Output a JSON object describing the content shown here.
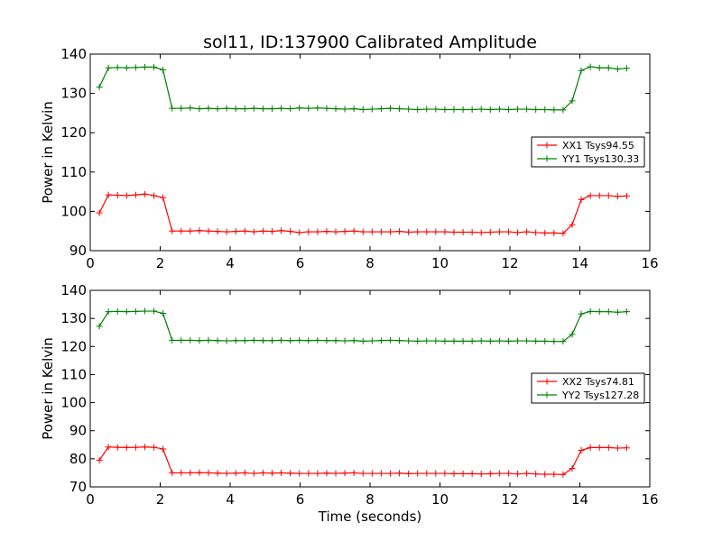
{
  "chart_data": [
    {
      "type": "line",
      "title": "sol11, ID:137900 Calibrated Amplitude",
      "xlabel": "",
      "ylabel": "Power in Kelvin",
      "xlim": [
        0,
        16
      ],
      "ylim": [
        90,
        140
      ],
      "xticks": [
        "0",
        "2",
        "4",
        "6",
        "8",
        "10",
        "12",
        "14",
        "16"
      ],
      "yticks": [
        "90",
        "100",
        "110",
        "120",
        "130",
        "140"
      ],
      "legend_position": "right",
      "x": [
        0.26,
        0.52,
        0.78,
        1.04,
        1.3,
        1.56,
        1.82,
        2.08,
        2.34,
        2.6,
        2.86,
        3.12,
        3.38,
        3.64,
        3.9,
        4.16,
        4.42,
        4.68,
        4.94,
        5.2,
        5.46,
        5.72,
        5.98,
        6.24,
        6.5,
        6.76,
        7.02,
        7.28,
        7.54,
        7.8,
        8.06,
        8.32,
        8.58,
        8.84,
        9.1,
        9.36,
        9.62,
        9.88,
        10.14,
        10.4,
        10.66,
        10.92,
        11.18,
        11.44,
        11.7,
        11.96,
        12.22,
        12.48,
        12.74,
        13.0,
        13.26,
        13.52,
        13.78,
        14.04,
        14.3,
        14.56,
        14.82,
        15.08,
        15.34
      ],
      "series": [
        {
          "name": "XX1 Tsys94.55",
          "color": "#ff0000",
          "values": [
            99.6,
            104.2,
            104.1,
            104.0,
            104.2,
            104.4,
            104.0,
            103.5,
            95.0,
            95.0,
            95.0,
            95.1,
            95.0,
            94.9,
            94.8,
            94.9,
            95.0,
            94.8,
            95.0,
            94.9,
            95.1,
            94.9,
            94.6,
            94.8,
            94.8,
            94.9,
            94.8,
            94.9,
            95.0,
            94.8,
            94.8,
            94.8,
            94.8,
            94.9,
            94.7,
            94.8,
            94.8,
            94.8,
            94.8,
            94.7,
            94.7,
            94.7,
            94.6,
            94.7,
            94.8,
            94.8,
            94.6,
            94.8,
            94.6,
            94.5,
            94.5,
            94.4,
            96.6,
            103.0,
            104.0,
            104.0,
            104.0,
            103.8,
            103.9
          ]
        },
        {
          "name": "YY1 Tsys130.33",
          "color": "#008000",
          "values": [
            131.6,
            136.5,
            136.6,
            136.5,
            136.6,
            136.7,
            136.7,
            136.0,
            126.2,
            126.2,
            126.3,
            126.1,
            126.2,
            126.1,
            126.2,
            126.1,
            126.1,
            126.2,
            126.1,
            126.1,
            126.2,
            126.1,
            126.3,
            126.2,
            126.3,
            126.2,
            126.1,
            126.0,
            126.1,
            125.9,
            126.0,
            126.1,
            126.2,
            126.1,
            126.0,
            125.9,
            126.0,
            126.0,
            125.9,
            125.9,
            125.9,
            125.9,
            126.0,
            125.9,
            126.0,
            125.9,
            126.0,
            126.0,
            125.9,
            125.9,
            125.8,
            125.8,
            128.1,
            135.8,
            136.8,
            136.5,
            136.5,
            136.2,
            136.4
          ]
        }
      ]
    },
    {
      "type": "line",
      "title": "",
      "xlabel": "Time (seconds)",
      "ylabel": "Power in Kelvin",
      "xlim": [
        0,
        16
      ],
      "ylim": [
        70,
        140
      ],
      "xticks": [
        "0",
        "2",
        "4",
        "6",
        "8",
        "10",
        "12",
        "14",
        "16"
      ],
      "yticks": [
        "70",
        "80",
        "90",
        "100",
        "110",
        "120",
        "130",
        "140"
      ],
      "legend_position": "right",
      "x": [
        0.26,
        0.52,
        0.78,
        1.04,
        1.3,
        1.56,
        1.82,
        2.08,
        2.34,
        2.6,
        2.86,
        3.12,
        3.38,
        3.64,
        3.9,
        4.16,
        4.42,
        4.68,
        4.94,
        5.2,
        5.46,
        5.72,
        5.98,
        6.24,
        6.5,
        6.76,
        7.02,
        7.28,
        7.54,
        7.8,
        8.06,
        8.32,
        8.58,
        8.84,
        9.1,
        9.36,
        9.62,
        9.88,
        10.14,
        10.4,
        10.66,
        10.92,
        11.18,
        11.44,
        11.7,
        11.96,
        12.22,
        12.48,
        12.74,
        13.0,
        13.26,
        13.52,
        13.78,
        14.04,
        14.3,
        14.56,
        14.82,
        15.08,
        15.34
      ],
      "series": [
        {
          "name": "XX2 Tsys74.81",
          "color": "#ff0000",
          "values": [
            79.5,
            84.2,
            84.1,
            84.0,
            84.1,
            84.2,
            84.1,
            83.5,
            75.0,
            75.0,
            75.0,
            75.1,
            75.0,
            74.9,
            74.8,
            74.9,
            75.0,
            74.8,
            75.0,
            74.9,
            75.0,
            74.9,
            74.8,
            74.8,
            74.8,
            74.9,
            74.8,
            74.9,
            75.0,
            74.8,
            74.8,
            74.8,
            74.8,
            74.9,
            74.7,
            74.8,
            74.8,
            74.8,
            74.8,
            74.7,
            74.7,
            74.7,
            74.6,
            74.7,
            74.8,
            74.8,
            74.6,
            74.8,
            74.6,
            74.5,
            74.5,
            74.4,
            76.6,
            83.0,
            84.0,
            84.0,
            84.0,
            83.8,
            83.9
          ]
        },
        {
          "name": "YY2 Tsys127.28",
          "color": "#008000",
          "values": [
            127.2,
            132.4,
            132.5,
            132.4,
            132.5,
            132.6,
            132.6,
            131.8,
            122.2,
            122.2,
            122.2,
            122.1,
            122.2,
            122.1,
            122.0,
            122.1,
            122.1,
            122.2,
            122.1,
            122.1,
            122.2,
            122.1,
            122.2,
            122.1,
            122.2,
            122.1,
            122.1,
            122.0,
            122.1,
            121.9,
            122.0,
            122.1,
            122.2,
            122.1,
            122.0,
            121.9,
            122.0,
            122.0,
            121.9,
            121.9,
            121.9,
            121.9,
            122.0,
            121.9,
            122.0,
            121.9,
            122.0,
            122.0,
            121.9,
            121.9,
            121.8,
            121.8,
            124.3,
            131.6,
            132.5,
            132.4,
            132.4,
            132.2,
            132.4
          ]
        }
      ]
    }
  ]
}
